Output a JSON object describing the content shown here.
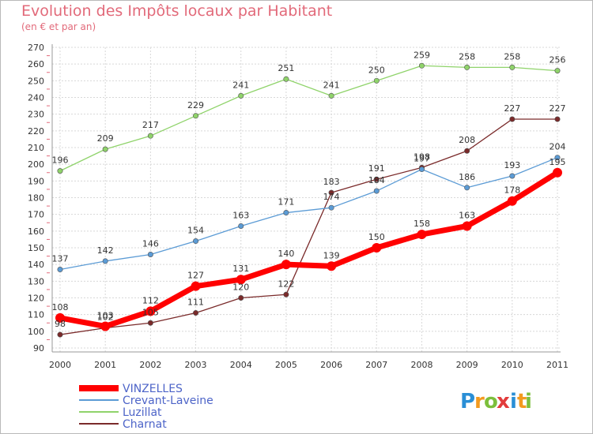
{
  "title": "Evolution des Impôts locaux par Habitant",
  "subtitle": "(en € et par an)",
  "logo": {
    "text": "Proxiti",
    "letters": [
      "P",
      "r",
      "o",
      "x",
      "i",
      "t",
      "i"
    ],
    "colors": [
      "#2a8fd6",
      "#f39a1f",
      "#7cbf3c",
      "#e23c3c",
      "#2a8fd6",
      "#f39a1f",
      "#7cbf3c"
    ]
  },
  "chart_data": {
    "type": "line",
    "title": "Evolution des Impôts locaux par Habitant",
    "subtitle": "(en € et par an)",
    "categories": [
      "2000",
      "2001",
      "2002",
      "2003",
      "2004",
      "2005",
      "2006",
      "2007",
      "2008",
      "2009",
      "2010",
      "2011"
    ],
    "ylim": [
      90,
      270
    ],
    "yticks": [
      90,
      100,
      110,
      120,
      130,
      140,
      150,
      160,
      170,
      180,
      190,
      200,
      210,
      220,
      230,
      240,
      250,
      260,
      270
    ],
    "grid": true,
    "legend_position": "bottom-left",
    "series": [
      {
        "name": "Luzillat",
        "color": "#8fd36a",
        "values": [
          196,
          209,
          217,
          229,
          241,
          251,
          241,
          250,
          259,
          258,
          258,
          256
        ]
      },
      {
        "name": "Charnat",
        "color": "#7a2a2a",
        "values": [
          98,
          102,
          105,
          111,
          120,
          122,
          183,
          191,
          198,
          208,
          227,
          227
        ]
      },
      {
        "name": "Crevant-Laveine",
        "color": "#5b9bd5",
        "values": [
          137,
          142,
          146,
          154,
          163,
          171,
          174,
          184,
          197,
          186,
          193,
          204
        ]
      },
      {
        "name": "VINZELLES",
        "color": "#ff0000",
        "values": [
          108,
          103,
          112,
          127,
          131,
          140,
          139,
          150,
          158,
          163,
          178,
          195
        ]
      }
    ],
    "legend_order": [
      "VINZELLES",
      "Crevant-Laveine",
      "Luzillat",
      "Charnat"
    ]
  }
}
